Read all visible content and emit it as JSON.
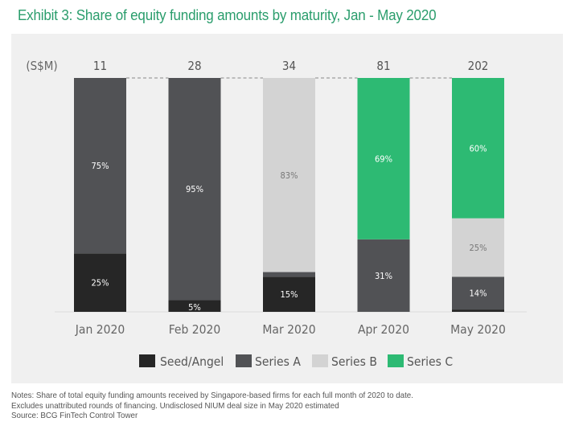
{
  "title": "Exhibit 3: Share of equity funding amounts by maturity, Jan - May 2020",
  "chart_data": {
    "type": "bar",
    "stacked": true,
    "normalized": true,
    "unit_label": "(S$M)",
    "categories": [
      "Jan  2020",
      "Feb  2020",
      "Mar 2020",
      "Apr 2020",
      "May 2020"
    ],
    "totals": [
      "11",
      "28",
      "34",
      "81",
      "202"
    ],
    "series": [
      {
        "name": "Seed/Angel",
        "color": "#262626",
        "values": [
          25,
          5,
          15,
          0,
          1
        ],
        "labels": [
          "25%",
          "5%",
          "15%",
          "",
          ""
        ]
      },
      {
        "name": "Series A",
        "color": "#515255",
        "values": [
          75,
          95,
          2,
          31,
          14
        ],
        "labels": [
          "75%",
          "95%",
          "",
          "31%",
          "14%"
        ]
      },
      {
        "name": "Series B",
        "color": "#d3d3d3",
        "values": [
          0,
          0,
          83,
          0,
          25
        ],
        "labels": [
          "",
          "",
          "83%",
          "",
          "25%"
        ]
      },
      {
        "name": "Series C",
        "color": "#2dba73",
        "values": [
          0,
          0,
          0,
          69,
          60
        ],
        "labels": [
          "",
          "",
          "",
          "69%",
          "60%"
        ]
      }
    ],
    "ylim": [
      0,
      100
    ],
    "legend_position": "bottom"
  },
  "notes": [
    "Notes: Share of total equity funding amounts received by Singapore-based firms for each full month of 2020 to date.",
    "Excludes unattributed rounds of financing. Undisclosed NIUM deal size in May 2020 estimated",
    "Source: BCG FinTech Control Tower"
  ]
}
